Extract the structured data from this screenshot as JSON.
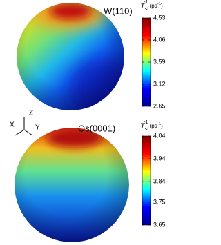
{
  "chart_data": [
    {
      "type": "sphere-colormap",
      "title": "W(110)",
      "colorbar_label": [
        "T",
        "sf",
        "-1",
        " (ps",
        "-1",
        ")"
      ],
      "colormap": "jet",
      "ylim": [
        2.65,
        4.53
      ],
      "yticks": [
        4.53,
        4.06,
        3.59,
        3.12,
        2.65
      ]
    },
    {
      "type": "sphere-colormap",
      "title": "Os(0001)",
      "colorbar_label": [
        "T",
        "sf",
        "-1",
        " (ps",
        "-1",
        ")"
      ],
      "colormap": "jet",
      "ylim": [
        3.65,
        4.04
      ],
      "yticks": [
        4.04,
        3.94,
        3.84,
        3.75,
        3.65
      ]
    }
  ],
  "axes_labels": {
    "x": "X",
    "y": "Y",
    "z": "Z"
  }
}
